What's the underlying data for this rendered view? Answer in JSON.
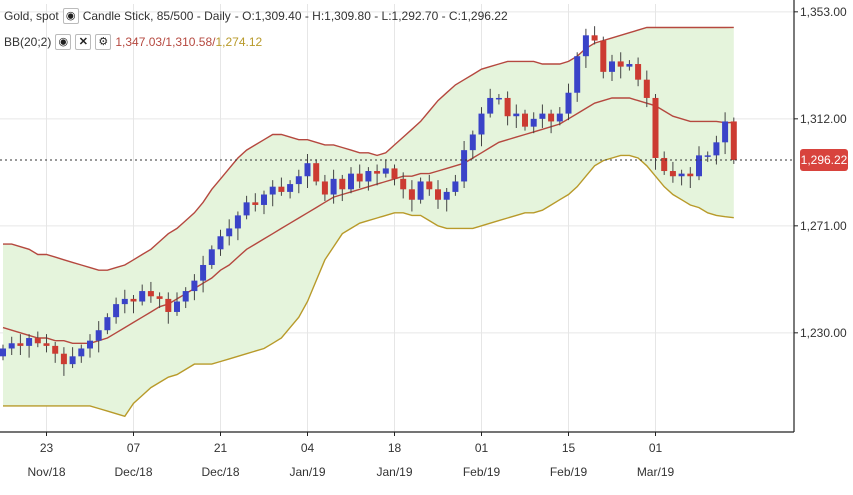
{
  "header": {
    "instrument": "Gold, spot",
    "chart_desc": "Candle Stick, 85/500 - Daily",
    "ohlc_text": "- O:1,309.40 - H:1,309.80 - L:1,292.70 - C:1,296.22",
    "indicator_label": "BB(20;2)",
    "bb_upper": "1,347.03",
    "bb_mid": "1,310.58",
    "bb_lower": "1,274.12"
  },
  "last_price_label": "1,296.22",
  "colors": {
    "up": "#3a43c8",
    "down": "#cc3b32",
    "band_fill": "#e5f4dc",
    "band_line": "#b5483f",
    "lower_line": "#b89a2a",
    "badge": "#d8433d"
  },
  "chart_data": {
    "type": "candlestick",
    "y_ticks": [
      {
        "value": 1353,
        "label": "1,353.00"
      },
      {
        "value": 1312,
        "label": "1,312.00"
      },
      {
        "value": 1271,
        "label": "1,271.00"
      },
      {
        "value": 1230,
        "label": "1,230.00"
      }
    ],
    "ylim": [
      1192,
      1356
    ],
    "x_ticks": [
      {
        "index": 5,
        "day": "23",
        "month": "Nov/18"
      },
      {
        "index": 15,
        "day": "07",
        "month": "Dec/18"
      },
      {
        "index": 25,
        "day": "21",
        "month": "Dec/18"
      },
      {
        "index": 35,
        "day": "04",
        "month": "Jan/19"
      },
      {
        "index": 45,
        "day": "18",
        "month": "Jan/19"
      },
      {
        "index": 55,
        "day": "01",
        "month": "Feb/19"
      },
      {
        "index": 65,
        "day": "15",
        "month": "Feb/19"
      },
      {
        "index": 75,
        "day": "01",
        "month": "Mar/19"
      }
    ],
    "last_price": 1296.22,
    "close": [
      1224,
      1226,
      1225,
      1228,
      1226,
      1225,
      1222,
      1218,
      1221,
      1224,
      1227,
      1231,
      1236,
      1241,
      1243,
      1242,
      1246,
      1244,
      1243,
      1238,
      1242,
      1246,
      1250,
      1256,
      1262,
      1267,
      1270,
      1275,
      1280,
      1279,
      1283,
      1286,
      1284,
      1287,
      1290,
      1295,
      1288,
      1283,
      1289,
      1285,
      1291,
      1288,
      1292,
      1291,
      1293,
      1289,
      1285,
      1281,
      1288,
      1285,
      1281,
      1284,
      1288,
      1300,
      1306,
      1314,
      1320,
      1320,
      1313,
      1314,
      1309,
      1312,
      1314,
      1311,
      1314,
      1322,
      1336,
      1344,
      1342,
      1330,
      1334,
      1332,
      1333,
      1327,
      1320,
      1297,
      1292,
      1290,
      1291,
      1290,
      1298,
      1298,
      1303,
      1311,
      1296.22
    ],
    "bb_upper": [
      1264,
      1264,
      1263,
      1262,
      1260,
      1260,
      1259,
      1258,
      1257,
      1256,
      1255,
      1254,
      1254,
      1255,
      1256,
      1258,
      1260,
      1262,
      1265,
      1268,
      1270,
      1273,
      1276,
      1280,
      1285,
      1289,
      1293,
      1297,
      1300,
      1302,
      1304,
      1306,
      1306,
      1305,
      1304,
      1304,
      1303,
      1302,
      1302,
      1301,
      1300,
      1299,
      1299,
      1298,
      1299,
      1302,
      1305,
      1308,
      1311,
      1315,
      1319,
      1322,
      1325,
      1327,
      1329,
      1331,
      1332,
      1333,
      1334,
      1334,
      1334,
      1334,
      1333,
      1333,
      1333,
      1334,
      1336,
      1339,
      1341,
      1342,
      1343,
      1344,
      1345,
      1346,
      1347,
      1347,
      1347,
      1347,
      1347,
      1347,
      1347,
      1347,
      1347,
      1347,
      1347.03
    ],
    "bb_mid": [
      1232,
      1231,
      1230,
      1229,
      1228,
      1228,
      1227,
      1227,
      1226,
      1226,
      1226,
      1227,
      1228,
      1230,
      1232,
      1234,
      1236,
      1238,
      1240,
      1241,
      1243,
      1245,
      1247,
      1249,
      1251,
      1254,
      1256,
      1259,
      1262,
      1264,
      1266,
      1268,
      1270,
      1272,
      1274,
      1276,
      1278,
      1280,
      1282,
      1283,
      1284,
      1285,
      1286,
      1287,
      1288,
      1289,
      1290,
      1290,
      1291,
      1291,
      1292,
      1293,
      1294,
      1295,
      1297,
      1299,
      1301,
      1303,
      1304,
      1305,
      1306,
      1307,
      1308,
      1309,
      1310,
      1312,
      1314,
      1316,
      1318,
      1319,
      1320,
      1320,
      1320,
      1319,
      1318,
      1317,
      1315,
      1313,
      1312,
      1311,
      1311,
      1311,
      1311,
      1310.5,
      1310.58
    ],
    "bb_lower": [
      1202,
      1202,
      1202,
      1202,
      1202,
      1202,
      1202,
      1202,
      1202,
      1202,
      1202,
      1201,
      1200,
      1199,
      1198,
      1203,
      1206,
      1209,
      1211,
      1213,
      1214,
      1216,
      1218,
      1218,
      1218,
      1219,
      1220,
      1221,
      1222,
      1223,
      1224,
      1226,
      1228,
      1232,
      1236,
      1242,
      1250,
      1258,
      1263,
      1268,
      1270,
      1272,
      1273,
      1274,
      1275,
      1276,
      1276,
      1275,
      1275,
      1273,
      1271,
      1270,
      1270,
      1270,
      1270,
      1271,
      1272,
      1273,
      1274,
      1275,
      1276,
      1276,
      1277,
      1279,
      1281,
      1283,
      1286,
      1290,
      1294,
      1296,
      1297,
      1298,
      1298,
      1297,
      1294,
      1290,
      1286,
      1283,
      1281,
      1279,
      1278,
      1276,
      1275,
      1274.5,
      1274.12
    ]
  }
}
